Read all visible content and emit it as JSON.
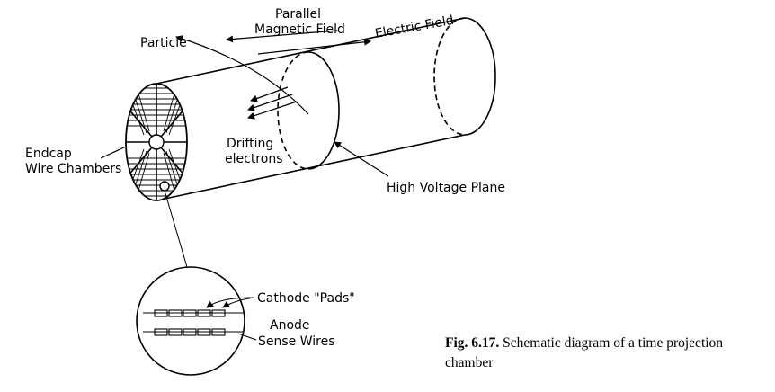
{
  "labels": {
    "particle": "Particle",
    "parallel": "Parallel",
    "magnetic_field": "Magnetic Field",
    "electric_field": "Electric Field",
    "drifting": "Drifting",
    "electrons": "electrons",
    "endcap": "Endcap",
    "wire_chambers": "Wire Chambers",
    "high_voltage_plane": "High Voltage Plane",
    "cathode_pads": "Cathode \"Pads\"",
    "anode": "Anode",
    "sense_wires": "Sense Wires"
  },
  "caption": {
    "number": "Fig. 6.17.",
    "text": "Schematic diagram of a time projection chamber"
  }
}
